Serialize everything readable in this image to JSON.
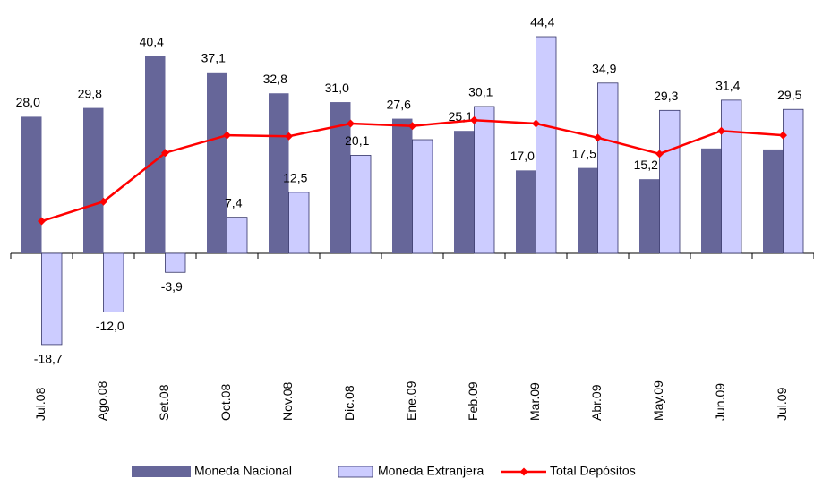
{
  "chart_data": {
    "type": "bar",
    "categories": [
      "Jul.08",
      "Ago.08",
      "Set.08",
      "Oct.08",
      "Nov.08",
      "Dic.08",
      "Ene.09",
      "Feb.09",
      "Mar.09",
      "Abr.09",
      "May.09",
      "Jun.09",
      "Jul.09"
    ],
    "series": [
      {
        "name": "Moneda Nacional",
        "type": "bar",
        "color": "#666699",
        "values": [
          28.0,
          29.8,
          40.4,
          37.1,
          32.8,
          31.0,
          27.6,
          25.1,
          17.0,
          17.5,
          15.2,
          21.5,
          21.3
        ],
        "value_labels": [
          "28,0",
          "29,8",
          "40,4",
          "37,1",
          "32,8",
          "31,0",
          "27,6",
          "25,1",
          "17,0",
          "17,5",
          "15,2",
          null,
          null
        ]
      },
      {
        "name": "Moneda Extranjera",
        "type": "bar",
        "color": "#ccccff",
        "values": [
          -18.7,
          -12.0,
          -3.9,
          7.4,
          12.5,
          20.1,
          23.3,
          30.1,
          44.4,
          34.9,
          29.3,
          31.4,
          29.5
        ],
        "value_labels": [
          "-18,7",
          "-12,0",
          "-3,9",
          "7,4",
          "12,5",
          "20,1",
          null,
          "30,1",
          "44,4",
          "34,9",
          "29,3",
          "31,4",
          "29,5"
        ]
      },
      {
        "name": "Total Depósitos",
        "type": "line",
        "color": "#ff0000",
        "values": [
          6.6,
          10.6,
          20.6,
          24.2,
          24.0,
          26.6,
          26.1,
          27.3,
          26.6,
          23.7,
          20.4,
          25.1,
          24.2
        ]
      }
    ]
  }
}
